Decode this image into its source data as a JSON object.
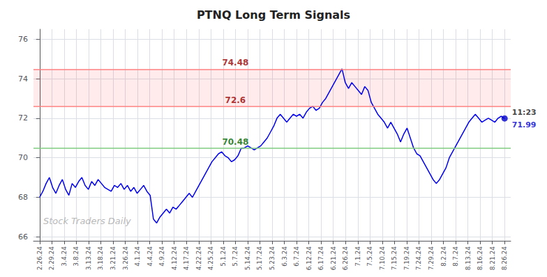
{
  "chart_data": {
    "type": "line",
    "title": "PTNQ Long Term Signals",
    "watermark": "Stock Traders Daily",
    "color": "#0000EE",
    "grid": true,
    "xlim": [
      -0.5,
      38.5
    ],
    "xticks": [
      {
        "value": 0,
        "label": "2.26.24"
      },
      {
        "value": 1,
        "label": "2.29.24"
      },
      {
        "value": 2,
        "label": "3.4.24"
      },
      {
        "value": 3,
        "label": "3.8.24"
      },
      {
        "value": 4,
        "label": "3.13.24"
      },
      {
        "value": 5,
        "label": "3.18.24"
      },
      {
        "value": 6,
        "label": "3.21.24"
      },
      {
        "value": 7,
        "label": "3.26.24"
      },
      {
        "value": 8,
        "label": "4.1.24"
      },
      {
        "value": 9,
        "label": "4.4.24"
      },
      {
        "value": 10,
        "label": "4.9.24"
      },
      {
        "value": 11,
        "label": "4.12.24"
      },
      {
        "value": 12,
        "label": "4.17.24"
      },
      {
        "value": 13,
        "label": "4.22.24"
      },
      {
        "value": 14,
        "label": "4.25.24"
      },
      {
        "value": 15,
        "label": "5.1.24"
      },
      {
        "value": 16,
        "label": "5.7.24"
      },
      {
        "value": 17,
        "label": "5.14.24"
      },
      {
        "value": 18,
        "label": "5.17.24"
      },
      {
        "value": 19,
        "label": "5.23.24"
      },
      {
        "value": 20,
        "label": "6.3.24"
      },
      {
        "value": 21,
        "label": "6.7.24"
      },
      {
        "value": 22,
        "label": "6.12.24"
      },
      {
        "value": 23,
        "label": "6.17.24"
      },
      {
        "value": 24,
        "label": "6.21.24"
      },
      {
        "value": 25,
        "label": "6.26.24"
      },
      {
        "value": 26,
        "label": "7.1.24"
      },
      {
        "value": 27,
        "label": "7.5.24"
      },
      {
        "value": 28,
        "label": "7.10.24"
      },
      {
        "value": 29,
        "label": "7.15.24"
      },
      {
        "value": 30,
        "label": "7.19.24"
      },
      {
        "value": 31,
        "label": "7.24.24"
      },
      {
        "value": 32,
        "label": "7.29.24"
      },
      {
        "value": 33,
        "label": "8.2.24"
      },
      {
        "value": 34,
        "label": "8.7.24"
      },
      {
        "value": 35,
        "label": "8.13.24"
      },
      {
        "value": 36,
        "label": "8.16.24"
      },
      {
        "value": 37,
        "label": "8.21.24"
      },
      {
        "value": 38,
        "label": "8.26.24"
      }
    ],
    "ylim": [
      65.8,
      76.5
    ],
    "yticks": [
      66,
      68,
      70,
      72,
      74,
      76
    ],
    "x": [
      0,
      0.2657,
      0.5315,
      0.7972,
      1.0629,
      1.3287,
      1.5944,
      1.8601,
      2.1259,
      2.3916,
      2.6573,
      2.9231,
      3.1888,
      3.4545,
      3.7203,
      3.986,
      4.2517,
      4.5175,
      4.7832,
      5.049,
      5.3147,
      5.5804,
      5.8462,
      6.1119,
      6.3776,
      6.6434,
      6.9091,
      7.1748,
      7.4406,
      7.7063,
      7.972,
      8.2378,
      8.5035,
      8.7692,
      9.035,
      9.3007,
      9.5664,
      9.8322,
      10.0979,
      10.3636,
      10.6294,
      10.8951,
      11.1608,
      11.4266,
      11.6923,
      11.958,
      12.2238,
      12.4895,
      12.7552,
      13.021,
      13.2867,
      13.5524,
      13.8182,
      14.0839,
      14.3497,
      14.6154,
      14.8811,
      15.1469,
      15.4126,
      15.6783,
      15.9441,
      16.2098,
      16.4755,
      16.7413,
      17.007,
      17.2727,
      17.5385,
      17.8042,
      18.0699,
      18.3357,
      18.6014,
      18.8671,
      19.1329,
      19.3986,
      19.6643,
      19.9301,
      20.1958,
      20.4615,
      20.7273,
      20.993,
      21.2587,
      21.5245,
      21.7902,
      22.0559,
      22.3217,
      22.5874,
      22.8531,
      23.1189,
      23.3846,
      23.6503,
      23.9161,
      24.1818,
      24.4476,
      24.7133,
      24.979,
      25.2448,
      25.5105,
      25.7762,
      26.042,
      26.3077,
      26.5734,
      26.8392,
      27.1049,
      27.3706,
      27.6364,
      27.9021,
      28.1678,
      28.4336,
      28.6993,
      28.965,
      29.2308,
      29.4965,
      29.7622,
      30.028,
      30.2937,
      30.5594,
      30.8252,
      31.0909,
      31.3566,
      31.6224,
      31.8881,
      32.1538,
      32.4196,
      32.6853,
      32.951,
      33.2168,
      33.4825,
      33.7483,
      34.014,
      34.2797,
      34.5455,
      34.8112,
      35.0769,
      35.3427,
      35.6084,
      35.8741,
      36.1399,
      36.4056,
      36.6713,
      36.9371,
      37.2028,
      37.4685,
      37.7343,
      38
    ],
    "values": [
      68.0,
      68.3,
      68.7,
      69.0,
      68.5,
      68.2,
      68.6,
      68.9,
      68.4,
      68.1,
      68.7,
      68.5,
      68.8,
      69.0,
      68.6,
      68.4,
      68.8,
      68.6,
      68.9,
      68.7,
      68.5,
      68.4,
      68.3,
      68.6,
      68.5,
      68.7,
      68.4,
      68.6,
      68.3,
      68.5,
      68.2,
      68.4,
      68.6,
      68.3,
      68.1,
      66.9,
      66.7,
      67.0,
      67.2,
      67.4,
      67.2,
      67.5,
      67.4,
      67.6,
      67.8,
      68.0,
      68.2,
      68.0,
      68.3,
      68.6,
      68.9,
      69.2,
      69.5,
      69.8,
      70.0,
      70.2,
      70.3,
      70.1,
      70.0,
      69.8,
      69.9,
      70.1,
      70.48,
      70.5,
      70.6,
      70.5,
      70.4,
      70.5,
      70.6,
      70.8,
      71.0,
      71.3,
      71.6,
      72.0,
      72.2,
      72.0,
      71.8,
      72.0,
      72.2,
      72.1,
      72.2,
      72.0,
      72.3,
      72.5,
      72.6,
      72.4,
      72.5,
      72.8,
      73.0,
      73.3,
      73.6,
      73.9,
      74.2,
      74.5,
      73.8,
      73.5,
      73.8,
      73.6,
      73.4,
      73.2,
      73.6,
      73.4,
      72.8,
      72.5,
      72.2,
      72.0,
      71.8,
      71.5,
      71.8,
      71.5,
      71.2,
      70.8,
      71.2,
      71.5,
      71.0,
      70.5,
      70.2,
      70.1,
      69.8,
      69.5,
      69.2,
      68.9,
      68.7,
      68.9,
      69.2,
      69.5,
      70.0,
      70.3,
      70.6,
      70.9,
      71.2,
      71.5,
      71.8,
      72.0,
      72.2,
      72.0,
      71.8,
      71.9,
      72.0,
      71.9,
      71.8,
      72.0,
      72.1,
      71.99
    ],
    "hlines": [
      {
        "value": 74.48,
        "label": "74.48",
        "x": 16,
        "color": "#FF8080",
        "label_color": "#990000"
      },
      {
        "value": 72.6,
        "label": "72.6",
        "x": 16,
        "color": "#FF8080",
        "label_color": "#990000"
      },
      {
        "value": 70.48,
        "label": "70.48",
        "x": 16,
        "color": "#80CC80",
        "label_color": "#006600"
      }
    ],
    "band": {
      "from": 72.6,
      "to": 74.48,
      "color": "#ff0000"
    },
    "last_point": {
      "x": 38,
      "value": 71.99,
      "label": "71.99",
      "time": "11:23",
      "color": "#0000CC",
      "time_color": "#111111",
      "label_color": "#0000CC"
    }
  }
}
